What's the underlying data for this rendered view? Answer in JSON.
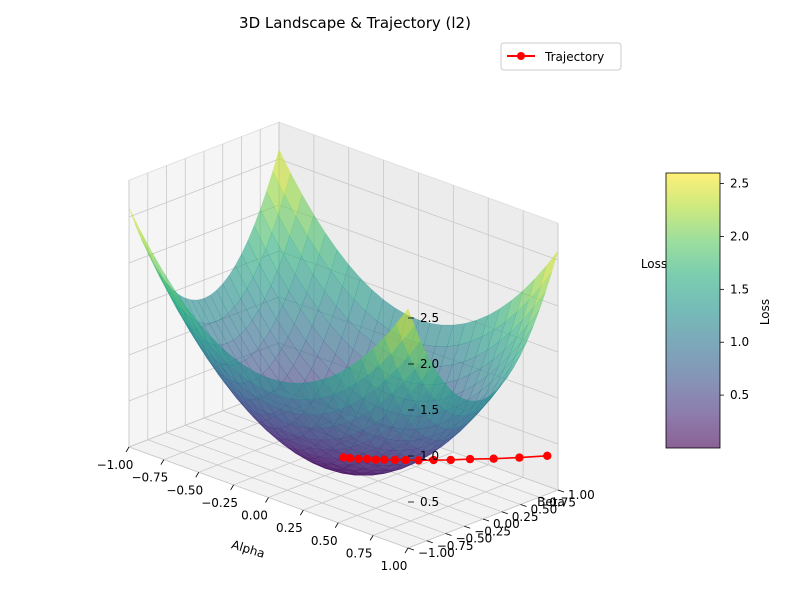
{
  "chart_data": {
    "type": "surface",
    "title": "3D Landscape & Trajectory (l2)",
    "xlabel": "Alpha",
    "ylabel": "Beta",
    "zlabel": "Loss",
    "xlim": [
      -1.0,
      1.0
    ],
    "ylim": [
      -1.0,
      1.0
    ],
    "zlim": [
      0.0,
      2.8
    ],
    "xticks": [
      "−1.00",
      "−0.75",
      "−0.50",
      "−0.25",
      "0.00",
      "0.25",
      "0.50",
      "0.75",
      "1.00"
    ],
    "yticks": [
      "−1.00",
      "−0.75",
      "−0.50",
      "−0.25",
      "0.00",
      "0.25",
      "0.50",
      "0.75",
      "1.00"
    ],
    "zticks": [
      "0.5",
      "1.0",
      "1.5",
      "2.0",
      "2.5"
    ],
    "colormap": "viridis",
    "surface_alpha": 0.6,
    "colorbar": {
      "label": "Loss",
      "min": 0.0,
      "max": 2.6,
      "ticks": [
        "0.5",
        "1.0",
        "1.5",
        "2.0",
        "2.5"
      ]
    },
    "grid": true,
    "legend": {
      "position": "top-right",
      "entries": [
        "Trajectory"
      ]
    },
    "series": [
      {
        "name": "Trajectory",
        "color": "#ff0000",
        "points": [
          {
            "x": 0.95,
            "y": 0.95,
            "z": 0.36
          },
          {
            "x": 0.82,
            "y": 0.82,
            "z": 0.31
          },
          {
            "x": 0.7,
            "y": 0.7,
            "z": 0.27
          },
          {
            "x": 0.59,
            "y": 0.59,
            "z": 0.24
          },
          {
            "x": 0.5,
            "y": 0.5,
            "z": 0.21
          },
          {
            "x": 0.42,
            "y": 0.42,
            "z": 0.19
          },
          {
            "x": 0.35,
            "y": 0.35,
            "z": 0.17
          },
          {
            "x": 0.29,
            "y": 0.29,
            "z": 0.16
          },
          {
            "x": 0.24,
            "y": 0.24,
            "z": 0.15
          },
          {
            "x": 0.19,
            "y": 0.19,
            "z": 0.14
          },
          {
            "x": 0.15,
            "y": 0.15,
            "z": 0.13
          },
          {
            "x": 0.11,
            "y": 0.11,
            "z": 0.13
          },
          {
            "x": 0.07,
            "y": 0.07,
            "z": 0.12
          },
          {
            "x": 0.03,
            "y": 0.03,
            "z": 0.12
          },
          {
            "x": 0.0,
            "y": 0.0,
            "z": 0.12
          }
        ]
      }
    ]
  }
}
